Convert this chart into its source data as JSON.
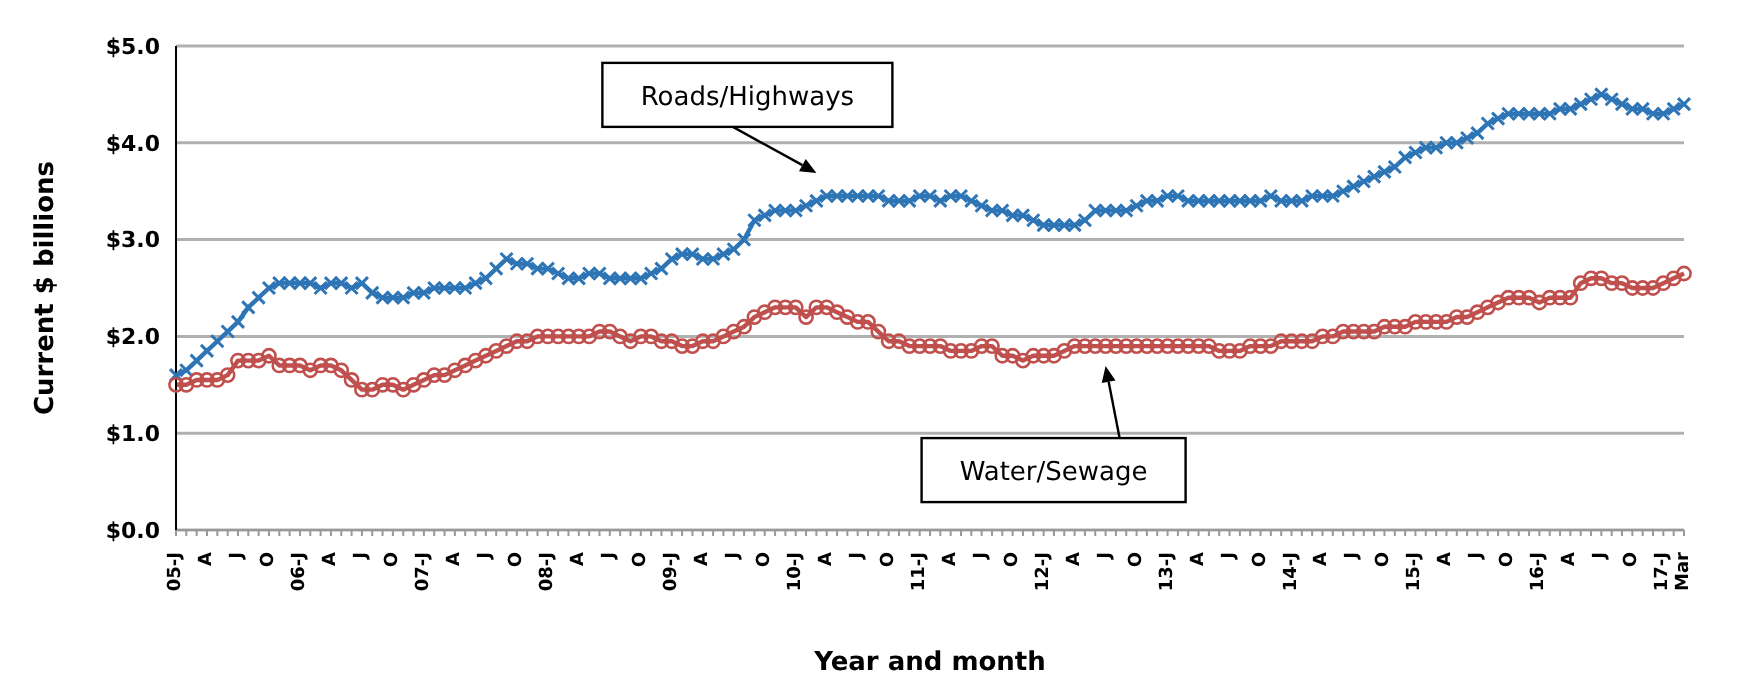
{
  "chart_data": {
    "type": "line",
    "xlabel": "Year and month",
    "ylabel": "Current $ billions",
    "categories": [
      "05-J",
      null,
      null,
      "A",
      null,
      null,
      "J",
      null,
      null,
      "O",
      null,
      null,
      "06-J",
      null,
      null,
      "A",
      null,
      null,
      "J",
      null,
      null,
      "O",
      null,
      null,
      "07-J",
      null,
      null,
      "A",
      null,
      null,
      "J",
      null,
      null,
      "O",
      null,
      null,
      "08-J",
      null,
      null,
      "A",
      null,
      null,
      "J",
      null,
      null,
      "O",
      null,
      null,
      "09-J",
      null,
      null,
      "A",
      null,
      null,
      "J",
      null,
      null,
      "O",
      null,
      null,
      "10-J",
      null,
      null,
      "A",
      null,
      null,
      "J",
      null,
      null,
      "O",
      null,
      null,
      "11-J",
      null,
      null,
      "A",
      null,
      null,
      "J",
      null,
      null,
      "O",
      null,
      null,
      "12-J",
      null,
      null,
      "A",
      null,
      null,
      "J",
      null,
      null,
      "O",
      null,
      null,
      "13-J",
      null,
      null,
      "A",
      null,
      null,
      "J",
      null,
      null,
      "O",
      null,
      null,
      "14-J",
      null,
      null,
      "A",
      null,
      null,
      "J",
      null,
      null,
      "O",
      null,
      null,
      "15-J",
      null,
      null,
      "A",
      null,
      null,
      "J",
      null,
      null,
      "O",
      null,
      null,
      "16-J",
      null,
      null,
      "A",
      null,
      null,
      "J",
      null,
      null,
      "O",
      null,
      null,
      "17-J",
      null,
      "Mar"
    ],
    "series": [
      {
        "name": "Roads/Highways",
        "color": "#2e75b6",
        "marker": "cross",
        "values": [
          1.6,
          1.65,
          1.75,
          1.85,
          1.95,
          2.05,
          2.15,
          2.3,
          2.4,
          2.5,
          2.55,
          2.55,
          2.55,
          2.55,
          2.5,
          2.55,
          2.55,
          2.5,
          2.55,
          2.45,
          2.4,
          2.4,
          2.4,
          2.45,
          2.45,
          2.5,
          2.5,
          2.5,
          2.5,
          2.55,
          2.6,
          2.7,
          2.8,
          2.75,
          2.75,
          2.7,
          2.7,
          2.65,
          2.6,
          2.6,
          2.65,
          2.65,
          2.6,
          2.6,
          2.6,
          2.6,
          2.65,
          2.7,
          2.8,
          2.85,
          2.85,
          2.8,
          2.8,
          2.85,
          2.9,
          3.0,
          3.2,
          3.25,
          3.3,
          3.3,
          3.3,
          3.35,
          3.4,
          3.45,
          3.45,
          3.45,
          3.45,
          3.45,
          3.45,
          3.4,
          3.4,
          3.4,
          3.45,
          3.45,
          3.4,
          3.45,
          3.45,
          3.4,
          3.35,
          3.3,
          3.3,
          3.25,
          3.25,
          3.2,
          3.15,
          3.15,
          3.15,
          3.15,
          3.2,
          3.3,
          3.3,
          3.3,
          3.3,
          3.35,
          3.4,
          3.4,
          3.45,
          3.45,
          3.4,
          3.4,
          3.4,
          3.4,
          3.4,
          3.4,
          3.4,
          3.4,
          3.45,
          3.4,
          3.4,
          3.4,
          3.45,
          3.45,
          3.45,
          3.5,
          3.55,
          3.6,
          3.65,
          3.7,
          3.75,
          3.85,
          3.9,
          3.95,
          3.95,
          4.0,
          4.0,
          4.05,
          4.1,
          4.2,
          4.25,
          4.3,
          4.3,
          4.3,
          4.3,
          4.3,
          4.35,
          4.35,
          4.4,
          4.45,
          4.5,
          4.45,
          4.4,
          4.35,
          4.35,
          4.3,
          4.3,
          4.35,
          4.4
        ]
      },
      {
        "name": "Water/Sewage",
        "color": "#c0504d",
        "marker": "circle",
        "values": [
          1.5,
          1.5,
          1.55,
          1.55,
          1.55,
          1.6,
          1.75,
          1.75,
          1.75,
          1.8,
          1.7,
          1.7,
          1.7,
          1.65,
          1.7,
          1.7,
          1.65,
          1.55,
          1.45,
          1.45,
          1.5,
          1.5,
          1.45,
          1.5,
          1.55,
          1.6,
          1.6,
          1.65,
          1.7,
          1.75,
          1.8,
          1.85,
          1.9,
          1.95,
          1.95,
          2.0,
          2.0,
          2.0,
          2.0,
          2.0,
          2.0,
          2.05,
          2.05,
          2.0,
          1.95,
          2.0,
          2.0,
          1.95,
          1.95,
          1.9,
          1.9,
          1.95,
          1.95,
          2.0,
          2.05,
          2.1,
          2.2,
          2.25,
          2.3,
          2.3,
          2.3,
          2.2,
          2.3,
          2.3,
          2.25,
          2.2,
          2.15,
          2.15,
          2.05,
          1.95,
          1.95,
          1.9,
          1.9,
          1.9,
          1.9,
          1.85,
          1.85,
          1.85,
          1.9,
          1.9,
          1.8,
          1.8,
          1.75,
          1.8,
          1.8,
          1.8,
          1.85,
          1.9,
          1.9,
          1.9,
          1.9,
          1.9,
          1.9,
          1.9,
          1.9,
          1.9,
          1.9,
          1.9,
          1.9,
          1.9,
          1.9,
          1.85,
          1.85,
          1.85,
          1.9,
          1.9,
          1.9,
          1.95,
          1.95,
          1.95,
          1.95,
          2.0,
          2.0,
          2.05,
          2.05,
          2.05,
          2.05,
          2.1,
          2.1,
          2.1,
          2.15,
          2.15,
          2.15,
          2.15,
          2.2,
          2.2,
          2.25,
          2.3,
          2.35,
          2.4,
          2.4,
          2.4,
          2.35,
          2.4,
          2.4,
          2.4,
          2.55,
          2.6,
          2.6,
          2.55,
          2.55,
          2.5,
          2.5,
          2.5,
          2.55,
          2.6,
          2.65
        ]
      }
    ],
    "ylim": [
      0,
      5
    ],
    "yticks": [
      {
        "value": 0,
        "label": "$0.0"
      },
      {
        "value": 1,
        "label": "$1.0"
      },
      {
        "value": 2,
        "label": "$2.0"
      },
      {
        "value": 3,
        "label": "$3.0"
      },
      {
        "value": 4,
        "label": "$4.0"
      },
      {
        "value": 5,
        "label": "$5.0"
      }
    ],
    "grid": "y",
    "line_style": "solid"
  }
}
